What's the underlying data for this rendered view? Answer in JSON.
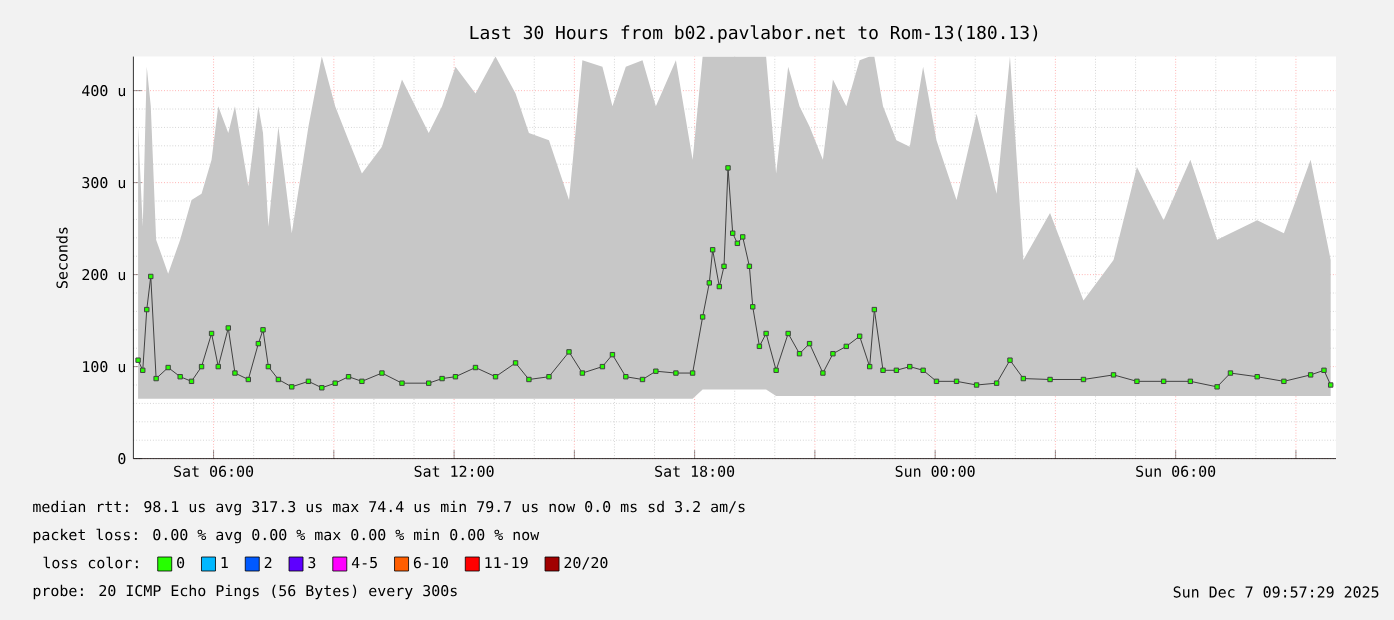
{
  "chart_data": {
    "type": "line",
    "title": "Last 30 Hours from b02.pavlabor.net to Rom-13(180.13)",
    "ylabel": "Seconds",
    "xlim": [
      "2025-12-06T04:00",
      "2025-12-07T10:00"
    ],
    "xticks": [
      {
        "value": "2025-12-06T06:00",
        "label": "Sat 06:00"
      },
      {
        "value": "2025-12-06T09:00",
        "label": null
      },
      {
        "value": "2025-12-06T12:00",
        "label": "Sat 12:00"
      },
      {
        "value": "2025-12-06T15:00",
        "label": null
      },
      {
        "value": "2025-12-06T18:00",
        "label": "Sat 18:00"
      },
      {
        "value": "2025-12-06T21:00",
        "label": null
      },
      {
        "value": "2025-12-07T00:00",
        "label": "Sun 00:00"
      },
      {
        "value": "2025-12-07T03:00",
        "label": null
      },
      {
        "value": "2025-12-07T06:00",
        "label": "Sun 06:00"
      },
      {
        "value": "2025-12-07T09:00",
        "label": null
      }
    ],
    "ylim": [
      0,
      437
    ],
    "yticks": [
      0,
      {
        "value": 100,
        "label": "100 u"
      },
      {
        "value": 200,
        "label": "200 u"
      },
      {
        "value": 300,
        "label": "300 u"
      },
      {
        "value": 400,
        "label": "400 u"
      }
    ],
    "grid": true,
    "legend": "bottom",
    "legend_title": "loss color:",
    "marker": "square",
    "series": [
      {
        "name": "0",
        "color": "#26ff00",
        "x": [
          "2025-12-06T04:07",
          "2025-12-06T04:14",
          "2025-12-06T04:20",
          "2025-12-06T04:26",
          "2025-12-06T04:34",
          "2025-12-06T04:52",
          "2025-12-06T05:10",
          "2025-12-06T05:27",
          "2025-12-06T05:42",
          "2025-12-06T05:57",
          "2025-12-06T06:07",
          "2025-12-06T06:22",
          "2025-12-06T06:32",
          "2025-12-06T06:52",
          "2025-12-06T07:07",
          "2025-12-06T07:14",
          "2025-12-06T07:22",
          "2025-12-06T07:37",
          "2025-12-06T07:57",
          "2025-12-06T08:22",
          "2025-12-06T08:42",
          "2025-12-06T09:02",
          "2025-12-06T09:22",
          "2025-12-06T09:42",
          "2025-12-06T10:12",
          "2025-12-06T10:42",
          "2025-12-06T11:22",
          "2025-12-06T11:42",
          "2025-12-06T12:02",
          "2025-12-06T12:32",
          "2025-12-06T13:02",
          "2025-12-06T13:32",
          "2025-12-06T13:52",
          "2025-12-06T14:22",
          "2025-12-06T14:52",
          "2025-12-06T15:12",
          "2025-12-06T15:42",
          "2025-12-06T15:57",
          "2025-12-06T16:17",
          "2025-12-06T16:42",
          "2025-12-06T17:02",
          "2025-12-06T17:32",
          "2025-12-06T17:57",
          "2025-12-06T18:12",
          "2025-12-06T18:22",
          "2025-12-06T18:27",
          "2025-12-06T18:37",
          "2025-12-06T18:44",
          "2025-12-06T18:50",
          "2025-12-06T18:57",
          "2025-12-06T19:04",
          "2025-12-06T19:12",
          "2025-12-06T19:22",
          "2025-12-06T19:27",
          "2025-12-06T19:37",
          "2025-12-06T19:47",
          "2025-12-06T20:02",
          "2025-12-06T20:20",
          "2025-12-06T20:37",
          "2025-12-06T20:52",
          "2025-12-06T21:12",
          "2025-12-06T21:27",
          "2025-12-06T21:47",
          "2025-12-06T22:07",
          "2025-12-06T22:22",
          "2025-12-06T22:29",
          "2025-12-06T22:42",
          "2025-12-06T23:02",
          "2025-12-06T23:22",
          "2025-12-06T23:42",
          "2025-12-07T00:02",
          "2025-12-07T00:32",
          "2025-12-07T01:02",
          "2025-12-07T01:32",
          "2025-12-07T01:52",
          "2025-12-07T02:12",
          "2025-12-07T02:52",
          "2025-12-07T03:42",
          "2025-12-07T04:27",
          "2025-12-07T05:02",
          "2025-12-07T05:42",
          "2025-12-07T06:22",
          "2025-12-07T07:02",
          "2025-12-07T07:22",
          "2025-12-07T08:02",
          "2025-12-07T08:42",
          "2025-12-07T09:22",
          "2025-12-07T09:42",
          "2025-12-07T09:52"
        ],
        "values": [
          107,
          96,
          162,
          198,
          87,
          99,
          89,
          84,
          100,
          136,
          100,
          142,
          93,
          86,
          125,
          140,
          100,
          86,
          78,
          84,
          77,
          82,
          89,
          84,
          93,
          82,
          82,
          87,
          89,
          99,
          89,
          104,
          86,
          89,
          116,
          93,
          100,
          113,
          89,
          86,
          95,
          93,
          93,
          154,
          191,
          227,
          187,
          209,
          316,
          245,
          234,
          241,
          209,
          165,
          122,
          136,
          96,
          136,
          114,
          125,
          93,
          114,
          122,
          133,
          100,
          162,
          96,
          96,
          100,
          96,
          84,
          84,
          80,
          82,
          107,
          87,
          86,
          86,
          91,
          84,
          84,
          84,
          78,
          93,
          89,
          84,
          91,
          96,
          80
        ],
        "upper": [
          361,
          252,
          426,
          383,
          238,
          201,
          238,
          281,
          288,
          325,
          383,
          354,
          383,
          296,
          383,
          354,
          252,
          361,
          245,
          361,
          437,
          383,
          346,
          310,
          339,
          412,
          354,
          383,
          426,
          397,
          437,
          397,
          354,
          346,
          281,
          433,
          426,
          383,
          426,
          433,
          383,
          433,
          325,
          437,
          437,
          437,
          437,
          437,
          437,
          437,
          437,
          437,
          437,
          437,
          437,
          437,
          310,
          426,
          383,
          361,
          325,
          412,
          383,
          433,
          437,
          437,
          383,
          346,
          339,
          426,
          346,
          281,
          375,
          288,
          437,
          216,
          267,
          172,
          216,
          317,
          259,
          325,
          238,
          245,
          259,
          245,
          325,
          252,
          216
        ],
        "lower": [
          65,
          65,
          65,
          65,
          65,
          65,
          65,
          65,
          65,
          65,
          65,
          65,
          65,
          65,
          65,
          65,
          65,
          65,
          65,
          65,
          65,
          65,
          65,
          65,
          65,
          65,
          65,
          65,
          65,
          65,
          65,
          65,
          65,
          65,
          65,
          65,
          65,
          65,
          65,
          65,
          65,
          65,
          65,
          75,
          75,
          75,
          75,
          75,
          75,
          75,
          75,
          75,
          75,
          75,
          75,
          75,
          68,
          68,
          68,
          68,
          68,
          68,
          68,
          68,
          68,
          68,
          68,
          68,
          68,
          68,
          68,
          68,
          68,
          68,
          68,
          68,
          68,
          68,
          68,
          68,
          68,
          68,
          68,
          68,
          68,
          68,
          68,
          68,
          68
        ]
      },
      {
        "name": "1",
        "color": "#00b8ff"
      },
      {
        "name": "2",
        "color": "#0059ff"
      },
      {
        "name": "3",
        "color": "#5e00ff"
      },
      {
        "name": "4-5",
        "color": "#ff00ff"
      },
      {
        "name": "6-10",
        "color": "#ff5e00"
      },
      {
        "name": "11-19",
        "color": "#ff0000"
      },
      {
        "name": "20/20",
        "color": "#a10000"
      }
    ],
    "annotations": [
      "median rtt: 98.1 us avg 317.3 us max 74.4 us min 79.7 us now 0.0 ms sd 3.2 am/s",
      "packet loss: 0.00 % avg 0.00 % max 0.00 % min 0.00 % now",
      "probe: 20 ICMP Echo Pings (56 Bytes) every 300s",
      "Sun Dec 7 09:57:29 2025"
    ]
  }
}
